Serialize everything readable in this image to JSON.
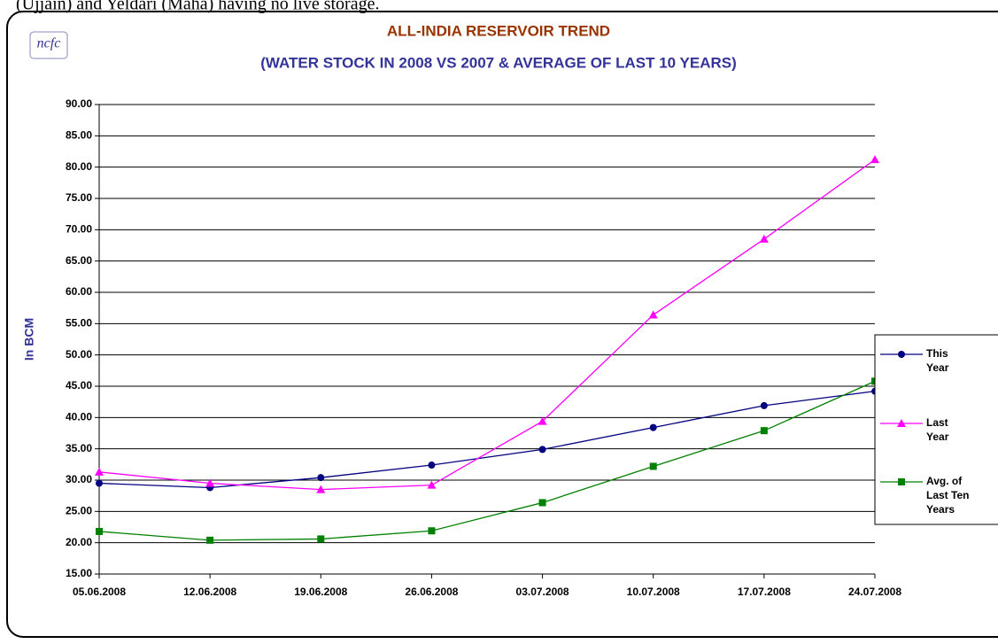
{
  "header_text": "(Ujjain) and Yeldari (Maha) having no live storage.",
  "logo": "ncfc",
  "chart_data": {
    "type": "line",
    "title": "ALL-INDIA RESERVOIR TREND",
    "subtitle": "(WATER STOCK IN 2008 VS 2007 & AVERAGE OF LAST 10 YEARS)",
    "y_label": "In BCM",
    "categories": [
      "05.06.2008",
      "12.06.2008",
      "19.06.2008",
      "26.06.2008",
      "03.07.2008",
      "10.07.2008",
      "17.07.2008",
      "24.07.2008"
    ],
    "series": [
      {
        "name": "This Year",
        "color": "#000080",
        "marker": "circle",
        "values": [
          29.5,
          28.8,
          30.4,
          32.4,
          34.9,
          38.4,
          41.9,
          44.2
        ]
      },
      {
        "name": "Last Year",
        "color": "#ff00ff",
        "marker": "triangle",
        "values": [
          31.3,
          29.5,
          28.5,
          29.2,
          39.4,
          56.4,
          68.5,
          81.2
        ]
      },
      {
        "name": "Avg. of Last Ten Years",
        "color": "#008000",
        "marker": "square",
        "values": [
          21.8,
          20.4,
          20.6,
          21.9,
          26.4,
          32.2,
          37.9,
          45.8
        ]
      }
    ],
    "ylim": [
      15,
      90
    ],
    "yticks": [
      {
        "value": 15,
        "label": "15.00"
      },
      {
        "value": 20,
        "label": "20.00"
      },
      {
        "value": 25,
        "label": "25.00"
      },
      {
        "value": 30,
        "label": "30.00"
      },
      {
        "value": 35,
        "label": "35.00"
      },
      {
        "value": 40,
        "label": "40.00"
      },
      {
        "value": 45,
        "label": "45.00"
      },
      {
        "value": 50,
        "label": "50.00"
      },
      {
        "value": 55,
        "label": "55.00"
      },
      {
        "value": 60,
        "label": "60.00"
      },
      {
        "value": 65,
        "label": "65.00"
      },
      {
        "value": 70,
        "label": "70.00"
      },
      {
        "value": 75,
        "label": "75.00"
      },
      {
        "value": 80,
        "label": "80.00"
      },
      {
        "value": 85,
        "label": "85.00"
      },
      {
        "value": 90,
        "label": "90.00"
      }
    ],
    "grid": true,
    "legend": "right"
  }
}
